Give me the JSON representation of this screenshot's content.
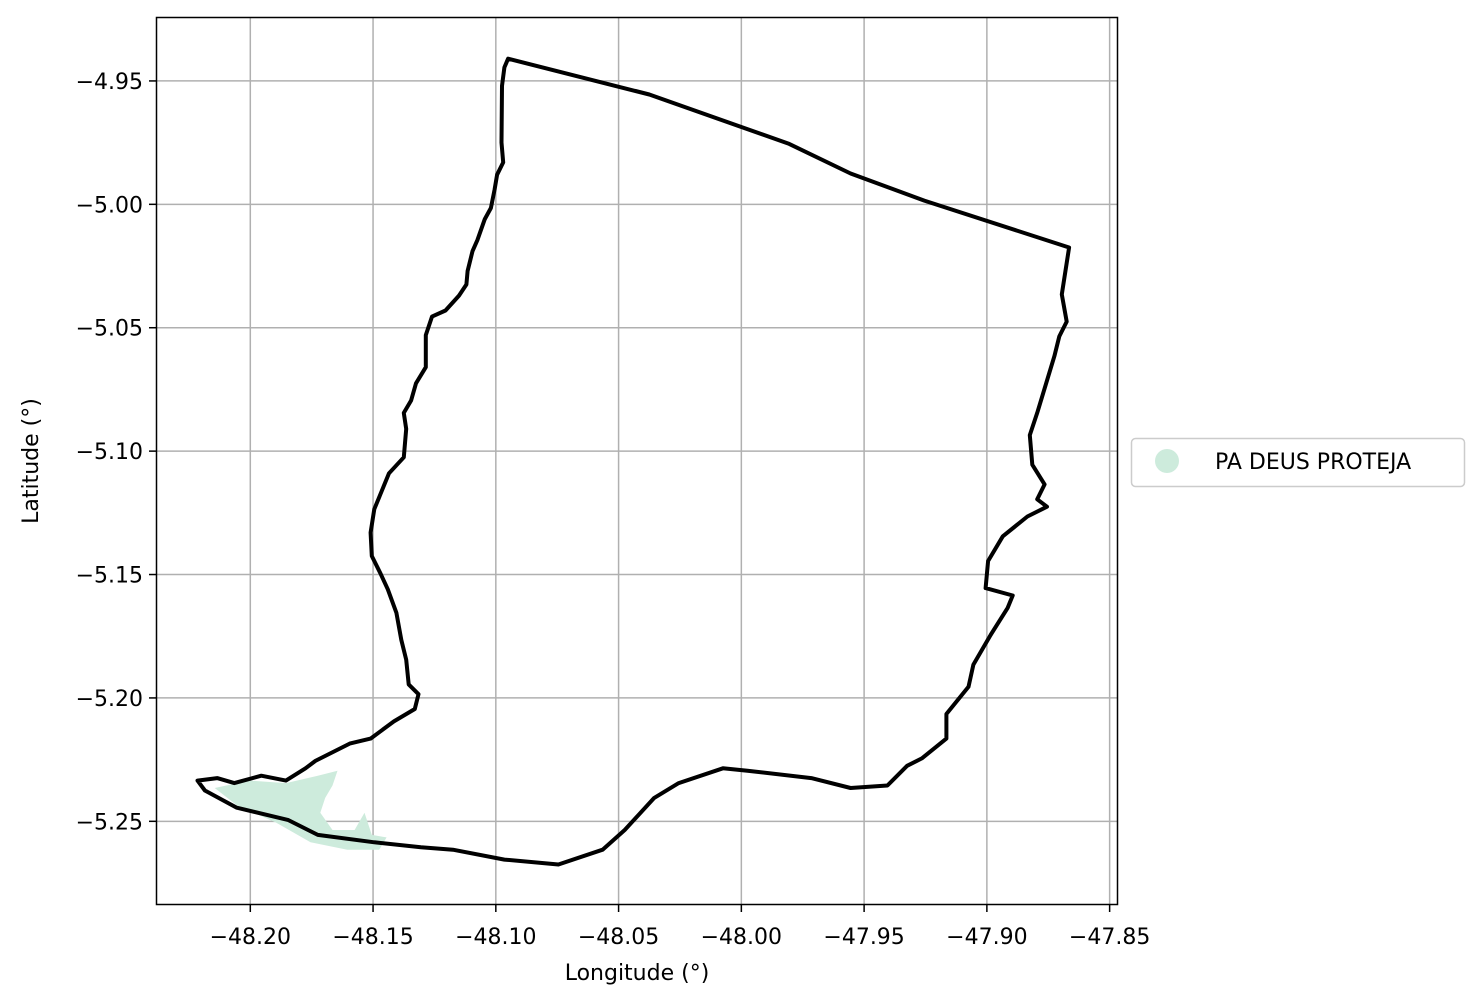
{
  "chart_data": {
    "type": "map",
    "xlabel": "Longitude (°)",
    "ylabel": "Latitude (°)",
    "xlim": [
      -48.238,
      -47.847
    ],
    "ylim": [
      -5.2835,
      -4.9245
    ],
    "x_ticks": [
      -48.2,
      -48.15,
      -48.1,
      -48.05,
      -48.0,
      -47.95,
      -47.9,
      -47.85
    ],
    "x_tick_labels": [
      "−48.20",
      "−48.15",
      "−48.10",
      "−48.05",
      "−48.00",
      "−47.95",
      "−47.90",
      "−47.85"
    ],
    "y_ticks": [
      -4.95,
      -5.0,
      -5.05,
      -5.1,
      -5.15,
      -5.2,
      -5.25
    ],
    "y_tick_labels": [
      "−4.95",
      "−5.00",
      "−5.05",
      "−5.10",
      "−5.15",
      "−5.20",
      "−5.25"
    ],
    "grid": true,
    "legend_position": "right",
    "layers": [
      {
        "name": "municipality-boundary",
        "kind": "outline",
        "color": "#000000",
        "coords": [
          [
            -48.095,
            -4.941
          ],
          [
            -48.0965,
            -4.9445
          ],
          [
            -48.0975,
            -4.952
          ],
          [
            -48.0977,
            -4.975
          ],
          [
            -48.097,
            -4.983
          ],
          [
            -48.0995,
            -4.988
          ],
          [
            -48.1005,
            -4.994
          ],
          [
            -48.102,
            -5.0015
          ],
          [
            -48.1045,
            -5.006
          ],
          [
            -48.1075,
            -5.0145
          ],
          [
            -48.1095,
            -5.019
          ],
          [
            -48.1115,
            -5.027
          ],
          [
            -48.112,
            -5.0325
          ],
          [
            -48.115,
            -5.037
          ],
          [
            -48.1205,
            -5.043
          ],
          [
            -48.126,
            -5.0455
          ],
          [
            -48.1285,
            -5.053
          ],
          [
            -48.1285,
            -5.066
          ],
          [
            -48.1325,
            -5.0725
          ],
          [
            -48.1345,
            -5.0795
          ],
          [
            -48.1375,
            -5.0845
          ],
          [
            -48.1365,
            -5.091
          ],
          [
            -48.1375,
            -5.1025
          ],
          [
            -48.1435,
            -5.109
          ],
          [
            -48.1495,
            -5.1235
          ],
          [
            -48.151,
            -5.133
          ],
          [
            -48.1505,
            -5.1425
          ],
          [
            -48.147,
            -5.1495
          ],
          [
            -48.144,
            -5.156
          ],
          [
            -48.1405,
            -5.1655
          ],
          [
            -48.1385,
            -5.1765
          ],
          [
            -48.1365,
            -5.1845
          ],
          [
            -48.1355,
            -5.1945
          ],
          [
            -48.1315,
            -5.1985
          ],
          [
            -48.133,
            -5.2045
          ],
          [
            -48.1415,
            -5.2095
          ],
          [
            -48.151,
            -5.2165
          ],
          [
            -48.1595,
            -5.2185
          ],
          [
            -48.1735,
            -5.2255
          ],
          [
            -48.1775,
            -5.2285
          ],
          [
            -48.1855,
            -5.2335
          ],
          [
            -48.1955,
            -5.2315
          ],
          [
            -48.2065,
            -5.2345
          ],
          [
            -48.2135,
            -5.2325
          ],
          [
            -48.2215,
            -5.2335
          ],
          [
            -48.2185,
            -5.2375
          ],
          [
            -48.2055,
            -5.2445
          ],
          [
            -48.1845,
            -5.2495
          ],
          [
            -48.1725,
            -5.2555
          ],
          [
            -48.1495,
            -5.2585
          ],
          [
            -48.1305,
            -5.2605
          ],
          [
            -48.1175,
            -5.2615
          ],
          [
            -48.0965,
            -5.2655
          ],
          [
            -48.0745,
            -5.2675
          ],
          [
            -48.0565,
            -5.2615
          ],
          [
            -48.0475,
            -5.2535
          ],
          [
            -48.0355,
            -5.2405
          ],
          [
            -48.0255,
            -5.2345
          ],
          [
            -48.0075,
            -5.2285
          ],
          [
            -47.9975,
            -5.2295
          ],
          [
            -47.9715,
            -5.2325
          ],
          [
            -47.9555,
            -5.2365
          ],
          [
            -47.9405,
            -5.2355
          ],
          [
            -47.9325,
            -5.2275
          ],
          [
            -47.9265,
            -5.2245
          ],
          [
            -47.9165,
            -5.2165
          ],
          [
            -47.9165,
            -5.2065
          ],
          [
            -47.9075,
            -5.1955
          ],
          [
            -47.9055,
            -5.1865
          ],
          [
            -47.8985,
            -5.1745
          ],
          [
            -47.8915,
            -5.1635
          ],
          [
            -47.8895,
            -5.1585
          ],
          [
            -47.9005,
            -5.1555
          ],
          [
            -47.8995,
            -5.1445
          ],
          [
            -47.8935,
            -5.1345
          ],
          [
            -47.8835,
            -5.1265
          ],
          [
            -47.8755,
            -5.1225
          ],
          [
            -47.8795,
            -5.1195
          ],
          [
            -47.8765,
            -5.1135
          ],
          [
            -47.8815,
            -5.1055
          ],
          [
            -47.8825,
            -5.0935
          ],
          [
            -47.8795,
            -5.0845
          ],
          [
            -47.8725,
            -5.0615
          ],
          [
            -47.8705,
            -5.0535
          ],
          [
            -47.8675,
            -5.0475
          ],
          [
            -47.8695,
            -5.0365
          ],
          [
            -47.8665,
            -5.0175
          ],
          [
            -47.9255,
            -4.9985
          ],
          [
            -47.9555,
            -4.9875
          ],
          [
            -47.9805,
            -4.9755
          ],
          [
            -48.0375,
            -4.9555
          ],
          [
            -48.095,
            -4.941
          ]
        ]
      },
      {
        "name": "PA DEUS PROTEJA",
        "kind": "fill",
        "color": "#cdebdc",
        "coords": [
          [
            -48.2145,
            -5.2365
          ],
          [
            -48.2005,
            -5.2335
          ],
          [
            -48.1855,
            -5.2345
          ],
          [
            -48.1725,
            -5.2315
          ],
          [
            -48.1645,
            -5.2295
          ],
          [
            -48.1665,
            -5.2355
          ],
          [
            -48.1695,
            -5.2405
          ],
          [
            -48.1715,
            -5.2465
          ],
          [
            -48.1665,
            -5.2535
          ],
          [
            -48.1575,
            -5.2535
          ],
          [
            -48.1535,
            -5.2465
          ],
          [
            -48.1505,
            -5.2555
          ],
          [
            -48.1445,
            -5.2565
          ],
          [
            -48.1475,
            -5.2615
          ],
          [
            -48.1605,
            -5.2615
          ],
          [
            -48.1755,
            -5.2585
          ],
          [
            -48.1895,
            -5.2505
          ],
          [
            -48.2055,
            -5.2435
          ],
          [
            -48.2145,
            -5.2365
          ]
        ]
      }
    ],
    "legend": [
      {
        "label": "PA DEUS PROTEJA",
        "color": "#cdebdc",
        "marker": "circle"
      }
    ]
  }
}
